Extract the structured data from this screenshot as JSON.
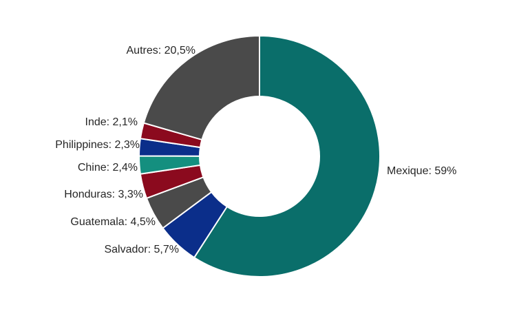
{
  "chart_data": {
    "type": "pie",
    "variant": "donut",
    "title": "",
    "start_angle_deg": 0,
    "direction": "clockwise",
    "slices": [
      {
        "category": "Mexique",
        "value": 59.0,
        "label": "Mexique: 59%",
        "color": "#0A6E6A"
      },
      {
        "category": "Salvador",
        "value": 5.7,
        "label": "Salvador: 5,7%",
        "color": "#0B2E8A"
      },
      {
        "category": "Guatemala",
        "value": 4.5,
        "label": "Guatemala: 4,5%",
        "color": "#4A4A4A"
      },
      {
        "category": "Honduras",
        "value": 3.3,
        "label": "Honduras: 3,3%",
        "color": "#8B0A1E"
      },
      {
        "category": "Chine",
        "value": 2.4,
        "label": "Chine: 2,4%",
        "color": "#148F7F"
      },
      {
        "category": "Philippines",
        "value": 2.3,
        "label": "Philippines: 2,3%",
        "color": "#0B2E8A"
      },
      {
        "category": "Inde",
        "value": 2.1,
        "label": "Inde: 2,1%",
        "color": "#8B0A1E"
      },
      {
        "category": "Autres",
        "value": 20.5,
        "label": "Autres: 20,5%",
        "color": "#4A4A4A"
      }
    ]
  }
}
